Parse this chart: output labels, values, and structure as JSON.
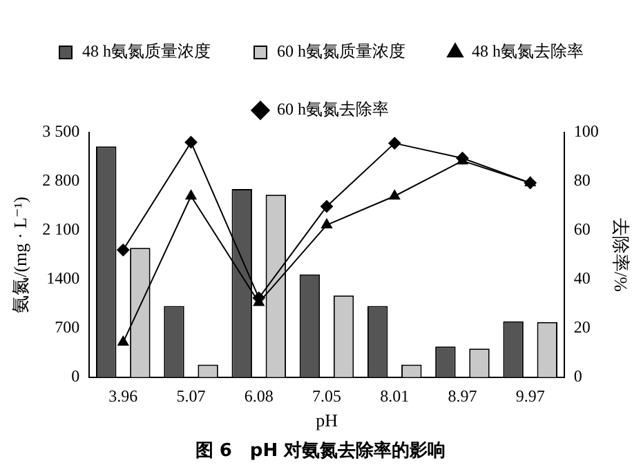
{
  "chart_data": {
    "type": "bar",
    "title": "图 6　pH 对氨氮去除率的影响",
    "xlabel": "pH",
    "ylabel": "氨氮/(mg · L⁻¹)",
    "y2label": "去除率/%",
    "categories": [
      "3.96",
      "5.07",
      "6.08",
      "7.05",
      "8.01",
      "8.97",
      "9.97"
    ],
    "series": [
      {
        "name": "48 h氨氮质量浓度",
        "color": "#555555",
        "values": [
          3300,
          1020,
          2690,
          1470,
          1020,
          440,
          800
        ]
      },
      {
        "name": "60 h氨氮质量浓度",
        "color": "#c8c8c8",
        "values": [
          1850,
          180,
          2610,
          1170,
          180,
          410,
          790
        ]
      },
      {
        "name": "48 h氨氮去除率",
        "type": "line",
        "axis": "y2",
        "marker": "triangle",
        "color": "#000000",
        "values": [
          14.3,
          74,
          30.5,
          62.2,
          74,
          88.4,
          79.4
        ]
      },
      {
        "name": "60 h氨氮去除率",
        "type": "line",
        "axis": "y2",
        "marker": "diamond",
        "color": "#000000",
        "values": [
          52,
          96,
          32.4,
          69.8,
          95.6,
          89.5,
          79.4
        ]
      }
    ],
    "ylim": [
      0,
      3500
    ],
    "yticks": [
      0,
      700,
      1400,
      {
        "value": 2100,
        "label": "2 100"
      },
      {
        "value": 2800,
        "label": "2 800"
      },
      {
        "value": 3500,
        "label": "3 500"
      }
    ],
    "y2lim": [
      0,
      100
    ],
    "y2ticks": [
      0,
      20,
      40,
      60,
      80,
      100
    ],
    "grid": false,
    "legend": "top"
  }
}
